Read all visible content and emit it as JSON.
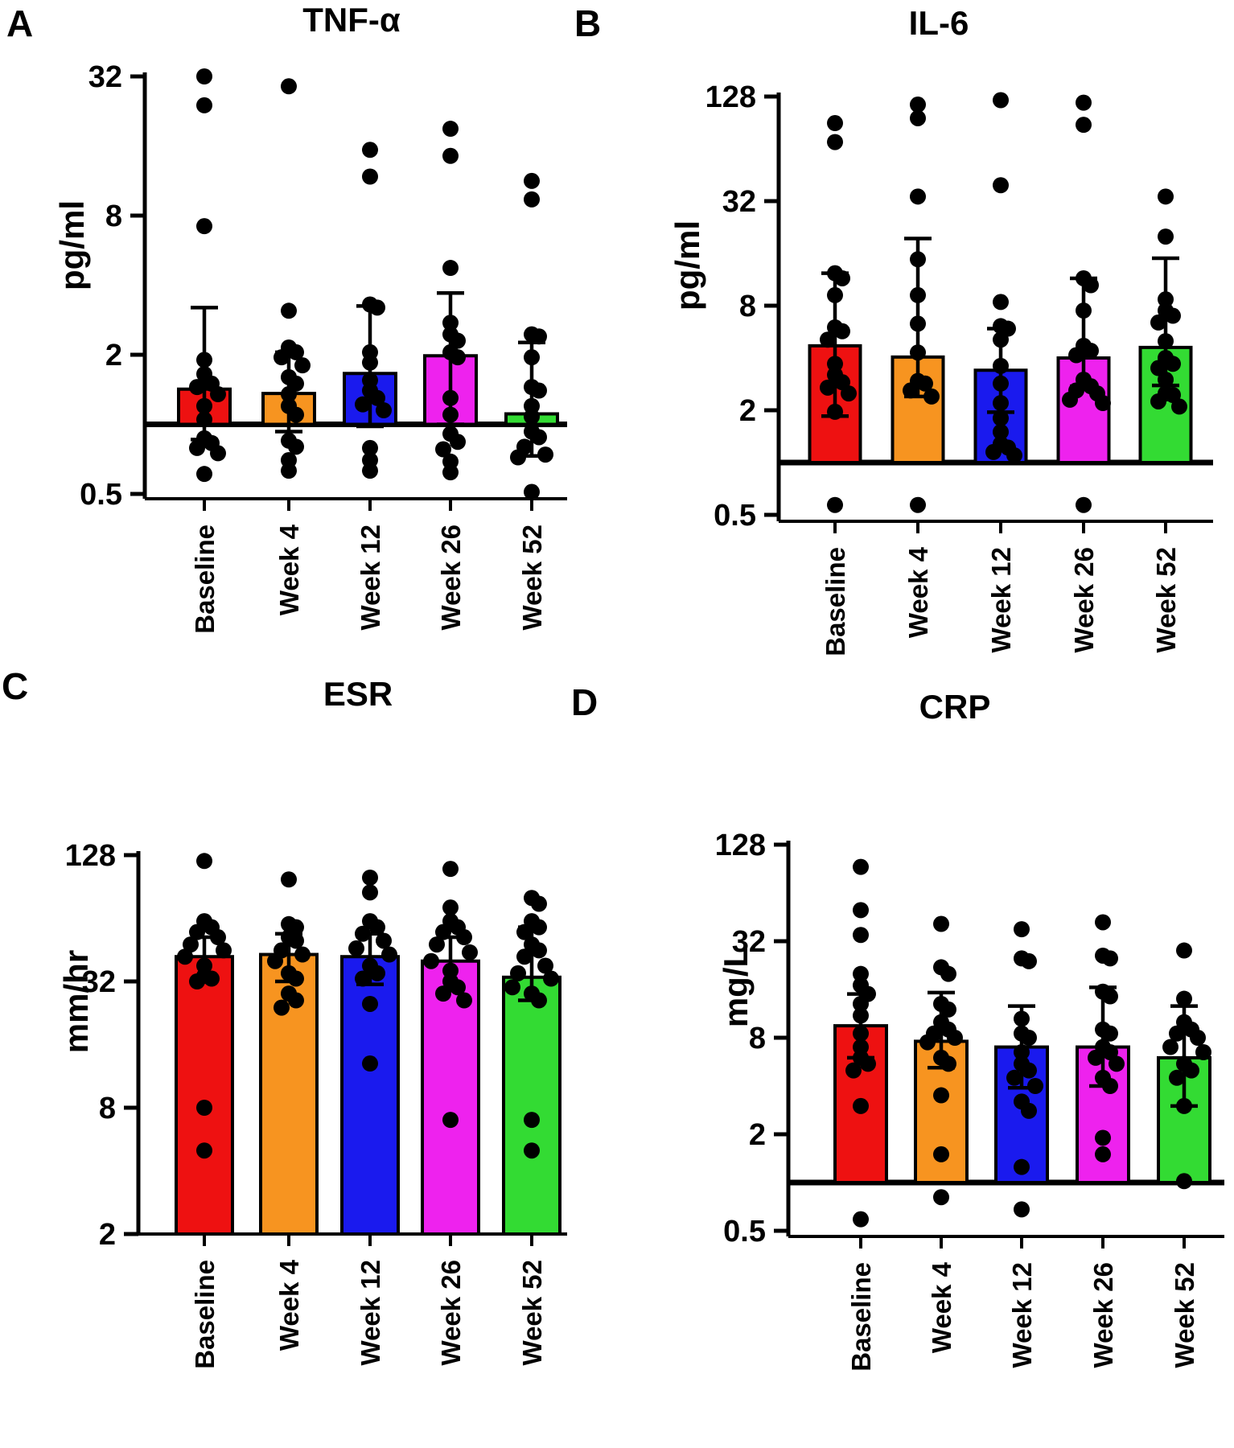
{
  "background": "#ffffff",
  "chart_data": [
    {
      "type": "bar",
      "panel_label": "A",
      "title": "TNF-α",
      "ylabel": "pg/ml",
      "yticks": [
        32,
        8,
        2,
        0.5
      ],
      "axis": {
        "scale": "log4",
        "top_tick": 32,
        "bar_base_value": 1,
        "frame_bottom_value": 0.45
      },
      "categories": [
        "Baseline",
        "Week 4",
        "Week 12",
        "Week 26",
        "Week 52"
      ],
      "bar_colors": [
        "#ee1111",
        "#f79420",
        "#1a1aee",
        "#ee22ee",
        "#33db33"
      ],
      "groups": [
        {
          "category": "Baseline",
          "bar": 1.42,
          "whisker_hi": 3.2,
          "whisker_lo": 0.86,
          "points": [
            32,
            24,
            7.2,
            1.9,
            1.65,
            1.5,
            1.45,
            1.35,
            1.2,
            1.05,
            0.87,
            0.83,
            0.79,
            0.75,
            0.61
          ]
        },
        {
          "category": "Week 4",
          "bar": 1.36,
          "whisker_hi": 2.05,
          "whisker_lo": 0.93,
          "points": [
            29,
            3.1,
            2.15,
            2.05,
            1.95,
            1.8,
            1.6,
            1.5,
            1.35,
            1.2,
            1.1,
            0.85,
            0.8,
            0.7,
            0.63
          ]
        },
        {
          "category": "Week 12",
          "bar": 1.66,
          "whisker_hi": 3.25,
          "whisker_lo": 0.98,
          "points": [
            15.4,
            11.8,
            3.3,
            3.2,
            2.05,
            1.85,
            1.55,
            1.4,
            1.3,
            1.22,
            1.15,
            0.79,
            0.7,
            0.63
          ]
        },
        {
          "category": "Week 26",
          "bar": 1.98,
          "whisker_hi": 3.7,
          "whisker_lo": 1.0,
          "points": [
            19,
            14.5,
            4.75,
            2.75,
            2.45,
            2.3,
            2.05,
            1.95,
            1.3,
            1.1,
            0.91,
            0.84,
            0.78,
            0.69,
            0.62
          ]
        },
        {
          "category": "Week 52",
          "bar": 1.11,
          "whisker_hi": 2.26,
          "whisker_lo": 0.73,
          "points": [
            11.3,
            9.4,
            2.45,
            2.4,
            1.95,
            1.45,
            1.4,
            1.2,
            1.08,
            0.93,
            0.88,
            0.8,
            0.74,
            0.72,
            0.51
          ]
        }
      ]
    },
    {
      "type": "bar",
      "panel_label": "B",
      "title": "IL-6",
      "ylabel": "pg/ml",
      "yticks": [
        128,
        32,
        8,
        2,
        0.5
      ],
      "axis": {
        "scale": "log4",
        "top_tick": 128,
        "bar_base_value": 1,
        "frame_bottom_value": 0.45
      },
      "categories": [
        "Baseline",
        "Week 4",
        "Week 12",
        "Week 26",
        "Week 52"
      ],
      "bar_colors": [
        "#ee1111",
        "#f79420",
        "#1a1aee",
        "#ee22ee",
        "#33db33"
      ],
      "groups": [
        {
          "category": "Baseline",
          "bar": 4.7,
          "whisker_hi": 12.3,
          "whisker_lo": 1.85,
          "points": [
            90,
            70,
            12.3,
            11.5,
            9.2,
            6.0,
            5.7,
            5.1,
            3.7,
            3.2,
            2.9,
            2.7,
            2.5,
            1.96,
            0.57
          ]
        },
        {
          "category": "Week 4",
          "bar": 4.05,
          "whisker_hi": 19.5,
          "whisker_lo": 2.4,
          "points": [
            115,
            96,
            34,
            14.8,
            9.2,
            6.3,
            4.3,
            2.95,
            2.85,
            2.6,
            2.4,
            0.57
          ]
        },
        {
          "category": "Week 12",
          "bar": 3.4,
          "whisker_hi": 5.9,
          "whisker_lo": 1.95,
          "points": [
            122,
            39.5,
            8.4,
            6.1,
            5.9,
            5.1,
            3.6,
            2.85,
            2.2,
            1.8,
            1.5,
            1.28,
            1.22,
            1.15,
            1.1
          ]
        },
        {
          "category": "Week 26",
          "bar": 4.0,
          "whisker_hi": 11.5,
          "whisker_lo": 2.75,
          "points": [
            118,
            88,
            11.5,
            10.5,
            7.5,
            4.7,
            4.4,
            4.15,
            3.0,
            2.75,
            2.6,
            2.5,
            2.3,
            2.2,
            0.57
          ]
        },
        {
          "category": "Week 52",
          "bar": 4.6,
          "whisker_hi": 15.0,
          "whisker_lo": 2.78,
          "points": [
            34,
            20,
            8.7,
            7.5,
            7.0,
            6.4,
            5.0,
            4.0,
            3.7,
            3.5,
            3.0,
            2.5,
            2.45,
            2.25,
            2.1
          ]
        }
      ]
    },
    {
      "type": "bar",
      "panel_label": "C",
      "title": "ESR",
      "ylabel": "mm/hr",
      "yticks": [
        128,
        32,
        8,
        2
      ],
      "axis": {
        "scale": "log4",
        "top_tick": 128,
        "bar_base_value": 2,
        "frame_bottom_value": 2
      },
      "categories": [
        "Baseline",
        "Week 4",
        "Week 12",
        "Week 26",
        "Week 52"
      ],
      "bar_colors": [
        "#ee1111",
        "#f79420",
        "#1a1aee",
        "#ee22ee",
        "#33db33"
      ],
      "groups": [
        {
          "category": "Baseline",
          "bar": 42,
          "whisker_hi": 52,
          "whisker_lo": 33,
          "points": [
            120,
            62,
            58,
            55,
            52,
            48,
            45,
            42,
            38,
            34,
            33,
            32,
            8,
            5
          ]
        },
        {
          "category": "Week 4",
          "bar": 43,
          "whisker_hi": 54,
          "whisker_lo": 32,
          "points": [
            98,
            60,
            58,
            52,
            50,
            45,
            43,
            40,
            35,
            33,
            28,
            26,
            24
          ]
        },
        {
          "category": "Week 12",
          "bar": 42,
          "whisker_hi": 54,
          "whisker_lo": 31,
          "points": [
            100,
            85,
            62,
            58,
            54,
            50,
            46,
            43,
            38,
            35,
            33,
            25,
            13
          ]
        },
        {
          "category": "Week 26",
          "bar": 40,
          "whisker_hi": 52,
          "whisker_lo": 29,
          "points": [
            110,
            72,
            62,
            58,
            55,
            52,
            48,
            44,
            40,
            36,
            32,
            30,
            28,
            26,
            7
          ]
        },
        {
          "category": "Week 52",
          "bar": 33.5,
          "whisker_hi": 58,
          "whisker_lo": 26,
          "points": [
            80,
            75,
            62,
            58,
            55,
            48,
            45,
            42,
            38,
            35,
            33,
            30,
            28,
            26,
            7,
            5
          ]
        }
      ]
    },
    {
      "type": "bar",
      "panel_label": "D",
      "title": "CRP",
      "ylabel": "mg/L",
      "yticks": [
        128,
        32,
        8,
        2,
        0.5
      ],
      "axis": {
        "scale": "log4",
        "top_tick": 128,
        "bar_base_value": 1,
        "frame_bottom_value": 0.45
      },
      "categories": [
        "Baseline",
        "Week 4",
        "Week 12",
        "Week 26",
        "Week 52"
      ],
      "bar_colors": [
        "#ee1111",
        "#f79420",
        "#1a1aee",
        "#ee22ee",
        "#33db33"
      ],
      "groups": [
        {
          "category": "Baseline",
          "bar": 9.5,
          "whisker_hi": 15.0,
          "whisker_lo": 6.0,
          "points": [
            93,
            50,
            35,
            20,
            17,
            15,
            13,
            11,
            8.5,
            7,
            6,
            5.5,
            5,
            3,
            0.59
          ]
        },
        {
          "category": "Week 4",
          "bar": 7.6,
          "whisker_hi": 15.3,
          "whisker_lo": 5.2,
          "points": [
            41,
            22,
            20,
            13,
            12,
            10,
            9,
            8.5,
            8,
            7.5,
            6,
            5.5,
            3.5,
            1.5,
            0.81
          ]
        },
        {
          "category": "Week 12",
          "bar": 7.0,
          "whisker_hi": 12.6,
          "whisker_lo": 3.9,
          "points": [
            38,
            25,
            24,
            10.5,
            8.5,
            8,
            6.5,
            5.5,
            5,
            4.5,
            4,
            3.2,
            2.8,
            1.25,
            0.68
          ]
        },
        {
          "category": "Week 26",
          "bar": 7.0,
          "whisker_hi": 16.5,
          "whisker_lo": 4.0,
          "points": [
            42,
            26,
            25,
            15.5,
            14.5,
            9,
            8.5,
            7,
            6.5,
            6,
            5.5,
            4.5,
            4,
            1.9,
            1.5
          ]
        },
        {
          "category": "Week 52",
          "bar": 6.0,
          "whisker_hi": 12.6,
          "whisker_lo": 3.0,
          "points": [
            28,
            14,
            10,
            9,
            8.5,
            8,
            7,
            6.5,
            5.5,
            5,
            4.5,
            3,
            1.02
          ]
        }
      ]
    }
  ]
}
